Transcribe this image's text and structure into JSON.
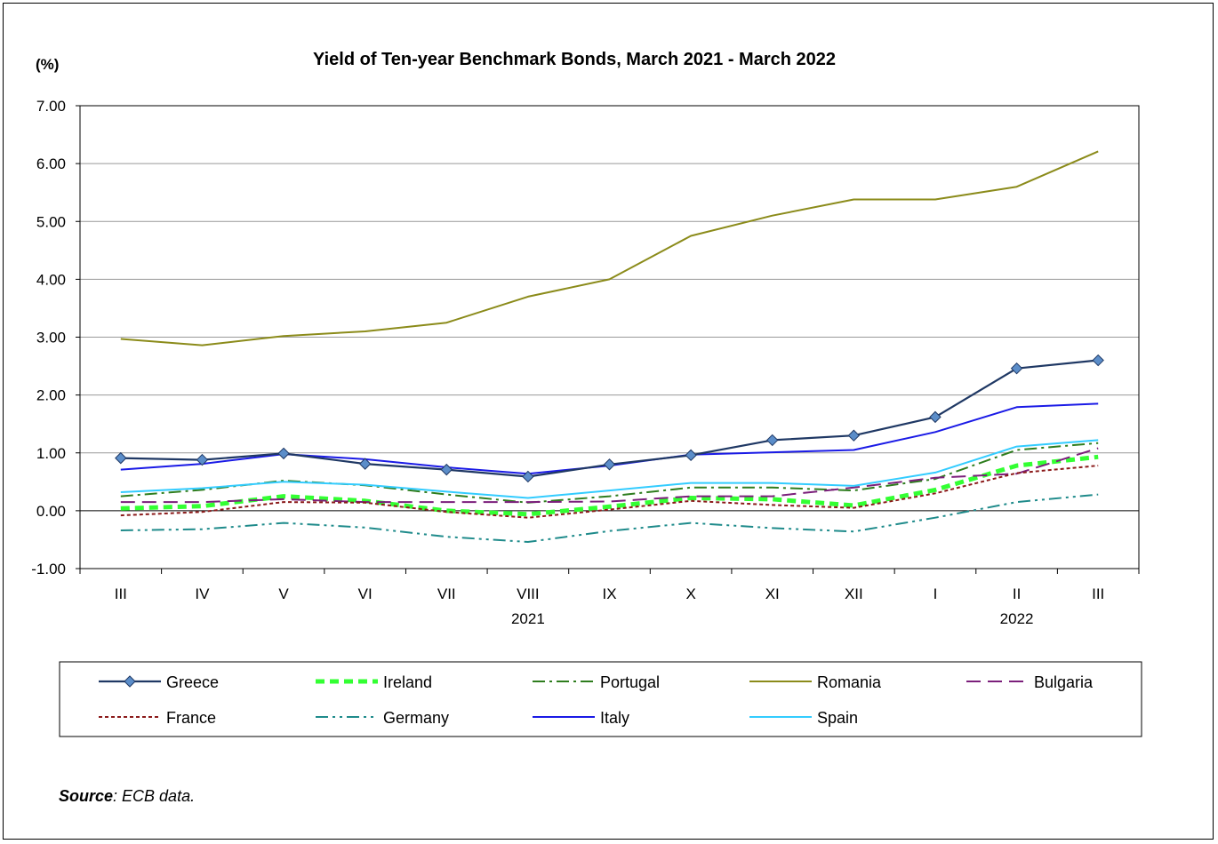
{
  "chart_data": {
    "type": "line",
    "title": "Yield of Ten-year Benchmark Bonds, March 2021 - March 2022",
    "unit_label": "(%)",
    "ylim": [
      -1,
      7
    ],
    "y_ticks": [
      "-1.00",
      "0.00",
      "1.00",
      "2.00",
      "3.00",
      "4.00",
      "5.00",
      "6.00",
      "7.00"
    ],
    "categories": [
      "III",
      "IV",
      "V",
      "VI",
      "VII",
      "VIII",
      "IX",
      "X",
      "XI",
      "XII",
      "I",
      "II",
      "III"
    ],
    "year_labels": [
      {
        "text": "2021",
        "category_index": 5
      },
      {
        "text": "2022",
        "category_index": 11
      }
    ],
    "grid": "horizontal",
    "legend_position": "bottom",
    "series": [
      {
        "name": "Greece",
        "color": "#1F3864",
        "style": "solid-diamond",
        "values": [
          0.91,
          0.88,
          0.99,
          0.81,
          0.71,
          0.59,
          0.8,
          0.96,
          1.22,
          1.3,
          1.62,
          2.46,
          2.6
        ]
      },
      {
        "name": "Ireland",
        "color": "#33FF33",
        "style": "thick-dash",
        "values": [
          0.04,
          0.08,
          0.25,
          0.17,
          0.0,
          -0.06,
          0.07,
          0.22,
          0.2,
          0.09,
          0.36,
          0.78,
          0.93
        ]
      },
      {
        "name": "Portugal",
        "color": "#2E7D1E",
        "style": "dash-dot",
        "values": [
          0.25,
          0.36,
          0.52,
          0.44,
          0.28,
          0.14,
          0.25,
          0.4,
          0.4,
          0.35,
          0.55,
          1.05,
          1.17
        ]
      },
      {
        "name": "Romania",
        "color": "#8B8B1A",
        "style": "solid",
        "values": [
          2.97,
          2.86,
          3.02,
          3.1,
          3.25,
          3.7,
          4.0,
          4.75,
          5.1,
          5.38,
          5.38,
          5.6,
          6.21
        ]
      },
      {
        "name": "Bulgaria",
        "color": "#7B1F7B",
        "style": "long-dash",
        "values": [
          0.15,
          0.15,
          0.2,
          0.15,
          0.15,
          0.15,
          0.16,
          0.25,
          0.25,
          0.4,
          0.57,
          0.64,
          1.08
        ]
      },
      {
        "name": "France",
        "color": "#8B1A1A",
        "style": "short-dash",
        "values": [
          -0.08,
          -0.02,
          0.15,
          0.14,
          -0.02,
          -0.12,
          0.02,
          0.17,
          0.1,
          0.05,
          0.3,
          0.65,
          0.78
        ]
      },
      {
        "name": "Germany",
        "color": "#1F8B8B",
        "style": "dash-dot-dot",
        "values": [
          -0.34,
          -0.32,
          -0.21,
          -0.29,
          -0.45,
          -0.54,
          -0.35,
          -0.21,
          -0.3,
          -0.36,
          -0.12,
          0.15,
          0.28
        ]
      },
      {
        "name": "Italy",
        "color": "#1A1AE6",
        "style": "solid",
        "values": [
          0.71,
          0.81,
          0.98,
          0.89,
          0.75,
          0.64,
          0.78,
          0.97,
          1.01,
          1.05,
          1.36,
          1.79,
          1.85
        ]
      },
      {
        "name": "Spain",
        "color": "#33CCFF",
        "style": "solid",
        "values": [
          0.32,
          0.39,
          0.5,
          0.45,
          0.33,
          0.22,
          0.35,
          0.48,
          0.48,
          0.43,
          0.66,
          1.11,
          1.22
        ]
      }
    ]
  },
  "footer": {
    "source_label": "Source",
    "source_text": ": ECB data."
  }
}
